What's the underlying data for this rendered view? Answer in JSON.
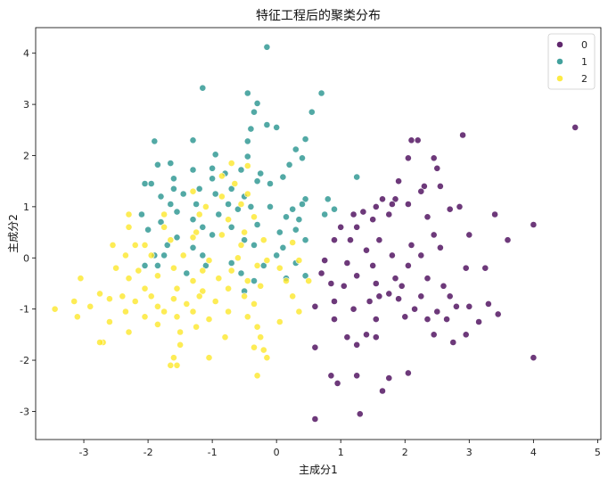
{
  "chart_data": {
    "type": "scatter",
    "title": "特征工程后的聚类分布",
    "xlabel": "主成分1",
    "ylabel": "主成分2",
    "xlim": [
      -3.75,
      5.05
    ],
    "ylim": [
      -3.55,
      4.5
    ],
    "xticks": [
      -3,
      -2,
      -1,
      0,
      1,
      2,
      3,
      4,
      5
    ],
    "yticks": [
      -3,
      -2,
      -1,
      0,
      1,
      2,
      3,
      4
    ],
    "grid": false,
    "legend": {
      "placement": "top-right"
    },
    "colors": {
      "0": "#440154",
      "1": "#21918c",
      "2": "#fde725"
    },
    "series": [
      {
        "name": "0",
        "points": [
          [
            2.1,
            2.3
          ],
          [
            2.2,
            2.3
          ],
          [
            2.9,
            2.4
          ],
          [
            4.65,
            2.55
          ],
          [
            2.05,
            1.95
          ],
          [
            2.45,
            1.95
          ],
          [
            2.5,
            1.75
          ],
          [
            1.9,
            1.5
          ],
          [
            2.3,
            1.4
          ],
          [
            2.55,
            1.4
          ],
          [
            1.65,
            1.15
          ],
          [
            1.85,
            1.15
          ],
          [
            2.25,
            1.3
          ],
          [
            1.55,
            1.0
          ],
          [
            1.8,
            1.05
          ],
          [
            2.05,
            1.05
          ],
          [
            2.7,
            0.95
          ],
          [
            2.85,
            1.0
          ],
          [
            1.2,
            0.85
          ],
          [
            1.35,
            0.9
          ],
          [
            1.5,
            0.75
          ],
          [
            1.75,
            0.85
          ],
          [
            2.35,
            0.8
          ],
          [
            1.0,
            0.6
          ],
          [
            1.25,
            0.6
          ],
          [
            3.4,
            0.85
          ],
          [
            4.0,
            0.65
          ],
          [
            3.6,
            0.35
          ],
          [
            2.45,
            0.45
          ],
          [
            3.0,
            0.45
          ],
          [
            0.9,
            0.35
          ],
          [
            1.15,
            0.35
          ],
          [
            1.6,
            0.35
          ],
          [
            2.1,
            0.25
          ],
          [
            2.55,
            0.2
          ],
          [
            1.4,
            0.15
          ],
          [
            1.8,
            0.05
          ],
          [
            2.25,
            0.05
          ],
          [
            0.75,
            -0.05
          ],
          [
            1.1,
            -0.1
          ],
          [
            1.5,
            -0.15
          ],
          [
            2.05,
            -0.15
          ],
          [
            2.95,
            -0.2
          ],
          [
            3.25,
            -0.2
          ],
          [
            0.7,
            -0.3
          ],
          [
            1.25,
            -0.35
          ],
          [
            1.85,
            -0.4
          ],
          [
            2.35,
            -0.4
          ],
          [
            0.85,
            -0.5
          ],
          [
            1.05,
            -0.55
          ],
          [
            1.55,
            -0.5
          ],
          [
            1.95,
            -0.55
          ],
          [
            2.6,
            -0.55
          ],
          [
            1.6,
            -0.75
          ],
          [
            1.75,
            -0.7
          ],
          [
            2.25,
            -0.75
          ],
          [
            0.9,
            -0.85
          ],
          [
            1.45,
            -0.85
          ],
          [
            1.9,
            -0.8
          ],
          [
            2.7,
            -0.75
          ],
          [
            3.0,
            -0.95
          ],
          [
            3.3,
            -0.9
          ],
          [
            0.6,
            -0.95
          ],
          [
            1.2,
            -1.0
          ],
          [
            2.15,
            -1.0
          ],
          [
            2.5,
            -1.05
          ],
          [
            2.8,
            -0.95
          ],
          [
            3.45,
            -1.1
          ],
          [
            0.9,
            -1.2
          ],
          [
            1.55,
            -1.2
          ],
          [
            2.0,
            -1.15
          ],
          [
            2.35,
            -1.2
          ],
          [
            2.65,
            -1.2
          ],
          [
            3.15,
            -1.25
          ],
          [
            1.4,
            -1.5
          ],
          [
            1.55,
            -1.55
          ],
          [
            2.45,
            -1.5
          ],
          [
            2.95,
            -1.5
          ],
          [
            1.1,
            -1.55
          ],
          [
            1.25,
            -1.7
          ],
          [
            2.75,
            -1.65
          ],
          [
            0.6,
            -1.75
          ],
          [
            4.0,
            -1.95
          ],
          [
            1.25,
            -2.3
          ],
          [
            0.85,
            -2.3
          ],
          [
            1.75,
            -2.35
          ],
          [
            0.95,
            -2.45
          ],
          [
            2.05,
            -2.25
          ],
          [
            1.65,
            -2.6
          ],
          [
            0.6,
            -3.15
          ],
          [
            1.3,
            -3.05
          ]
        ]
      },
      {
        "name": "1",
        "points": [
          [
            -0.15,
            4.12
          ],
          [
            -1.15,
            3.32
          ],
          [
            -0.45,
            3.22
          ],
          [
            0.7,
            3.22
          ],
          [
            -0.3,
            3.02
          ],
          [
            -0.35,
            2.85
          ],
          [
            0.55,
            2.85
          ],
          [
            -0.15,
            2.6
          ],
          [
            0.0,
            2.55
          ],
          [
            -0.4,
            2.52
          ],
          [
            -1.9,
            2.28
          ],
          [
            -1.3,
            2.3
          ],
          [
            -0.45,
            2.28
          ],
          [
            0.45,
            2.32
          ],
          [
            -0.95,
            2.02
          ],
          [
            0.3,
            2.12
          ],
          [
            -1.85,
            1.82
          ],
          [
            -1.65,
            1.85
          ],
          [
            -0.45,
            1.98
          ],
          [
            0.4,
            1.95
          ],
          [
            -1.3,
            1.72
          ],
          [
            -0.55,
            1.72
          ],
          [
            0.2,
            1.82
          ],
          [
            -0.8,
            1.65
          ],
          [
            -1.0,
            1.75
          ],
          [
            -0.25,
            1.65
          ],
          [
            -1.6,
            1.55
          ],
          [
            -1.0,
            1.55
          ],
          [
            0.1,
            1.58
          ],
          [
            -2.05,
            1.45
          ],
          [
            -1.95,
            1.45
          ],
          [
            -1.6,
            1.35
          ],
          [
            -1.2,
            1.35
          ],
          [
            -0.7,
            1.35
          ],
          [
            -0.3,
            1.5
          ],
          [
            1.25,
            1.58
          ],
          [
            0.8,
            1.15
          ],
          [
            0.45,
            1.15
          ],
          [
            -1.8,
            1.2
          ],
          [
            -1.45,
            1.25
          ],
          [
            -0.95,
            1.25
          ],
          [
            -0.5,
            1.2
          ],
          [
            -0.1,
            1.45
          ],
          [
            0.4,
            1.05
          ],
          [
            -1.65,
            1.05
          ],
          [
            -1.25,
            1.05
          ],
          [
            -0.75,
            1.05
          ],
          [
            -0.4,
            1.0
          ],
          [
            -0.1,
            1.0
          ],
          [
            0.25,
            0.95
          ],
          [
            0.9,
            0.95
          ],
          [
            -2.1,
            0.85
          ],
          [
            -1.55,
            0.9
          ],
          [
            -0.9,
            0.85
          ],
          [
            -0.6,
            0.95
          ],
          [
            0.15,
            0.8
          ],
          [
            0.75,
            0.85
          ],
          [
            -1.8,
            0.7
          ],
          [
            -1.3,
            0.75
          ],
          [
            0.35,
            0.75
          ],
          [
            -2.0,
            0.55
          ],
          [
            -1.15,
            0.6
          ],
          [
            -0.7,
            0.6
          ],
          [
            -0.3,
            0.65
          ],
          [
            0.05,
            0.5
          ],
          [
            0.3,
            0.55
          ],
          [
            -1.55,
            0.4
          ],
          [
            -1.0,
            0.45
          ],
          [
            -0.5,
            0.35
          ],
          [
            0.45,
            0.35
          ],
          [
            -1.7,
            0.25
          ],
          [
            -1.3,
            0.2
          ],
          [
            -0.35,
            0.25
          ],
          [
            0.1,
            0.2
          ],
          [
            -1.75,
            0.05
          ],
          [
            -1.9,
            0.05
          ],
          [
            -1.15,
            0.05
          ],
          [
            0.0,
            0.05
          ],
          [
            -2.05,
            -0.15
          ],
          [
            -1.85,
            -0.15
          ],
          [
            -1.1,
            -0.15
          ],
          [
            -0.7,
            -0.1
          ],
          [
            -0.2,
            -0.15
          ],
          [
            0.3,
            -0.1
          ],
          [
            -1.4,
            -0.3
          ],
          [
            -0.55,
            -0.3
          ],
          [
            0.45,
            -0.35
          ],
          [
            -0.35,
            -0.45
          ],
          [
            0.15,
            -0.4
          ],
          [
            -0.5,
            -0.65
          ]
        ]
      },
      {
        "name": "2",
        "points": [
          [
            -0.7,
            1.85
          ],
          [
            -0.45,
            1.8
          ],
          [
            -0.85,
            1.6
          ],
          [
            -0.65,
            1.45
          ],
          [
            -1.3,
            1.3
          ],
          [
            -0.85,
            1.2
          ],
          [
            -0.45,
            1.25
          ],
          [
            -1.1,
            1.0
          ],
          [
            -0.55,
            1.05
          ],
          [
            -2.3,
            0.85
          ],
          [
            -1.75,
            0.85
          ],
          [
            -1.2,
            0.85
          ],
          [
            -0.75,
            0.75
          ],
          [
            -0.35,
            0.8
          ],
          [
            -2.3,
            0.6
          ],
          [
            -1.75,
            0.6
          ],
          [
            -1.25,
            0.5
          ],
          [
            -0.85,
            0.45
          ],
          [
            -0.5,
            0.5
          ],
          [
            -2.55,
            0.25
          ],
          [
            -2.2,
            0.25
          ],
          [
            -2.05,
            0.25
          ],
          [
            -1.65,
            0.35
          ],
          [
            -1.3,
            0.4
          ],
          [
            -0.55,
            0.25
          ],
          [
            -0.2,
            0.35
          ],
          [
            0.25,
            0.3
          ],
          [
            -2.35,
            0.05
          ],
          [
            -1.95,
            0.05
          ],
          [
            -1.45,
            0.05
          ],
          [
            -1.05,
            -0.05
          ],
          [
            -0.6,
            0.0
          ],
          [
            -0.15,
            -0.05
          ],
          [
            0.35,
            -0.05
          ],
          [
            -2.5,
            -0.2
          ],
          [
            -2.15,
            -0.25
          ],
          [
            -1.6,
            -0.2
          ],
          [
            -1.15,
            -0.25
          ],
          [
            -0.7,
            -0.25
          ],
          [
            -0.3,
            -0.15
          ],
          [
            0.05,
            -0.2
          ],
          [
            -3.05,
            -0.4
          ],
          [
            -2.3,
            -0.4
          ],
          [
            -1.85,
            -0.35
          ],
          [
            -1.3,
            -0.45
          ],
          [
            -0.9,
            -0.4
          ],
          [
            -0.45,
            -0.45
          ],
          [
            0.15,
            -0.45
          ],
          [
            0.5,
            -0.45
          ],
          [
            -2.05,
            -0.6
          ],
          [
            -1.55,
            -0.6
          ],
          [
            -1.15,
            -0.65
          ],
          [
            -0.75,
            -0.6
          ],
          [
            -0.25,
            -0.55
          ],
          [
            -2.75,
            -0.7
          ],
          [
            -2.4,
            -0.75
          ],
          [
            -1.95,
            -0.75
          ],
          [
            -1.6,
            -0.8
          ],
          [
            -1.2,
            -0.75
          ],
          [
            -0.5,
            -0.75
          ],
          [
            0.25,
            -0.75
          ],
          [
            -3.15,
            -0.85
          ],
          [
            -2.6,
            -0.8
          ],
          [
            -2.2,
            -0.85
          ],
          [
            -1.85,
            -0.95
          ],
          [
            -1.4,
            -0.9
          ],
          [
            -0.95,
            -0.85
          ],
          [
            -0.35,
            -0.9
          ],
          [
            -3.45,
            -1.0
          ],
          [
            -2.9,
            -0.95
          ],
          [
            -2.35,
            -1.05
          ],
          [
            -1.75,
            -1.05
          ],
          [
            -1.3,
            -1.05
          ],
          [
            -0.75,
            -1.05
          ],
          [
            0.35,
            -1.05
          ],
          [
            -3.1,
            -1.15
          ],
          [
            -2.05,
            -1.15
          ],
          [
            -1.55,
            -1.15
          ],
          [
            -0.45,
            -1.15
          ],
          [
            -1.05,
            -1.2
          ],
          [
            -2.6,
            -1.25
          ],
          [
            -1.85,
            -1.3
          ],
          [
            0.05,
            -1.25
          ],
          [
            -1.25,
            -1.35
          ],
          [
            -0.3,
            -1.35
          ],
          [
            -2.3,
            -1.45
          ],
          [
            -1.5,
            -1.45
          ],
          [
            -0.25,
            -1.55
          ],
          [
            -0.8,
            -1.55
          ],
          [
            -2.7,
            -1.65
          ],
          [
            -2.75,
            -1.65
          ],
          [
            -1.5,
            -1.7
          ],
          [
            -0.35,
            -1.75
          ],
          [
            -0.2,
            -1.8
          ],
          [
            -1.6,
            -1.95
          ],
          [
            -1.05,
            -1.95
          ],
          [
            -0.15,
            -1.95
          ],
          [
            -1.65,
            -2.1
          ],
          [
            -1.55,
            -2.1
          ],
          [
            -0.3,
            -2.3
          ]
        ]
      }
    ]
  }
}
